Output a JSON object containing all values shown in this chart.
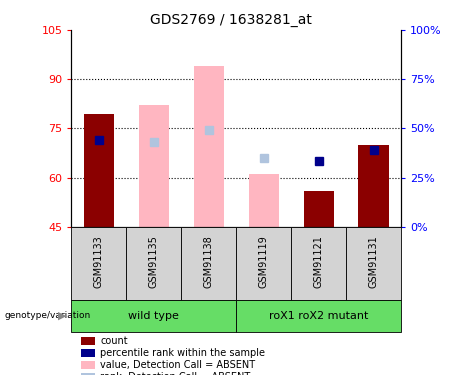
{
  "title": "GDS2769 / 1638281_at",
  "samples": [
    "GSM91133",
    "GSM91135",
    "GSM91138",
    "GSM91119",
    "GSM91121",
    "GSM91131"
  ],
  "bar_bottom": 45,
  "value_bars": [
    {
      "value": 79.5,
      "absent": false
    },
    {
      "value": 82.0,
      "absent": true
    },
    {
      "value": 94.0,
      "absent": true
    },
    {
      "value": 61.0,
      "absent": true
    },
    {
      "value": 56.0,
      "absent": false
    },
    {
      "value": 70.0,
      "absent": false
    }
  ],
  "rank_markers": [
    {
      "value": 71.5,
      "absent": false
    },
    {
      "value": 71.0,
      "absent": true
    },
    {
      "value": 74.5,
      "absent": true
    },
    {
      "value": 66.0,
      "absent": true
    },
    {
      "value": 65.0,
      "absent": false
    },
    {
      "value": 68.5,
      "absent": false
    }
  ],
  "ylim_left": [
    45,
    105
  ],
  "ylim_right": [
    0,
    100
  ],
  "yticks_left": [
    45,
    60,
    75,
    90,
    105
  ],
  "yticks_right": [
    0,
    25,
    50,
    75,
    100
  ],
  "ytick_labels_right": [
    "0%",
    "25%",
    "50%",
    "75%",
    "100%"
  ],
  "grid_values": [
    60,
    75,
    90
  ],
  "bar_color_present": "#8B0000",
  "bar_color_absent": "#FFB6C1",
  "rank_color_present": "#00008B",
  "rank_color_absent": "#B0C4DE",
  "group_bg_color": "#66DD66",
  "sample_bg_color": "#D3D3D3",
  "bar_width": 0.55,
  "rank_marker_size": 6,
  "group1_name": "wild type",
  "group2_name": "roX1 roX2 mutant",
  "legend_items": [
    {
      "label": "count",
      "color": "#8B0000"
    },
    {
      "label": "percentile rank within the sample",
      "color": "#00008B"
    },
    {
      "label": "value, Detection Call = ABSENT",
      "color": "#FFB6C1"
    },
    {
      "label": "rank, Detection Call = ABSENT",
      "color": "#B0C4DE"
    }
  ]
}
